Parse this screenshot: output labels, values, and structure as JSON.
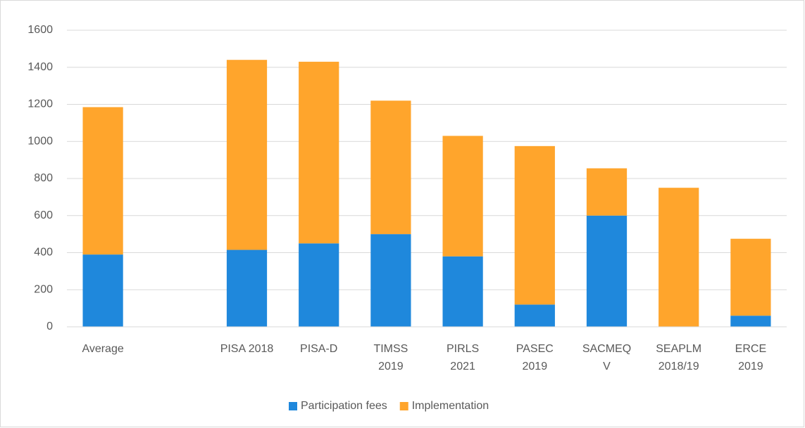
{
  "chart_data": {
    "type": "bar",
    "stacked": true,
    "categories": [
      "Average",
      null,
      "PISA 2018",
      "PISA-D",
      "TIMSS\n2019",
      "PIRLS\n2021",
      "PASEC\n2019",
      "SACMEQ\nV",
      "SEAPLM\n2018/19",
      "ERCE\n2019"
    ],
    "series": [
      {
        "name": "Participation fees",
        "color": "#1f88dc",
        "values": [
          390,
          null,
          415,
          450,
          500,
          380,
          120,
          600,
          0,
          60
        ]
      },
      {
        "name": "Implementation",
        "color": "#ffa52c",
        "values": [
          795,
          null,
          1025,
          980,
          720,
          650,
          855,
          255,
          750,
          415
        ]
      }
    ],
    "ylim": [
      0,
      1600
    ],
    "yticks": [
      0,
      200,
      400,
      600,
      800,
      1000,
      1200,
      1400,
      1600
    ],
    "grid": true,
    "legend": "bottom"
  }
}
